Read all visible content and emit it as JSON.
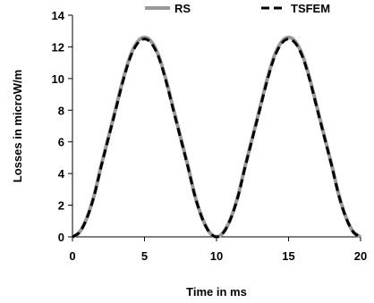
{
  "chart_data": {
    "type": "line",
    "xlabel": "Time in ms",
    "ylabel": "Losses in microW/m",
    "xlim": [
      0,
      20
    ],
    "ylim": [
      0,
      14
    ],
    "xticks": [
      "0",
      "5",
      "10",
      "15",
      "20"
    ],
    "yticks": [
      "0",
      "2",
      "4",
      "6",
      "8",
      "10",
      "12",
      "14"
    ],
    "grid": false,
    "legend_position": "top",
    "series": [
      {
        "name": "RS",
        "color": "#999999",
        "style": "solid",
        "x": [
          0,
          0.5,
          1,
          1.5,
          2,
          2.5,
          3,
          3.5,
          4,
          4.5,
          5,
          5.5,
          6,
          6.5,
          7,
          7.5,
          8,
          8.5,
          9,
          9.5,
          10,
          10.5,
          11,
          11.5,
          12,
          12.5,
          13,
          13.5,
          14,
          14.5,
          15,
          15.5,
          16,
          16.5,
          17,
          17.5,
          18,
          18.5,
          19,
          19.5,
          20
        ],
        "y": [
          0,
          0.31,
          1.2,
          2.61,
          4.52,
          6.3,
          8.1,
          9.9,
          11.4,
          12.3,
          12.6,
          12.3,
          11.4,
          9.9,
          8.1,
          6.3,
          4.52,
          2.61,
          1.2,
          0.31,
          0,
          0.31,
          1.2,
          2.61,
          4.52,
          6.3,
          8.1,
          9.9,
          11.4,
          12.3,
          12.6,
          12.3,
          11.4,
          9.9,
          8.1,
          6.3,
          4.52,
          2.61,
          1.2,
          0.31,
          0
        ]
      },
      {
        "name": "TSFEM",
        "color": "#000000",
        "style": "dashed",
        "x": [
          0,
          0.5,
          1,
          1.5,
          2,
          2.5,
          3,
          3.5,
          4,
          4.5,
          5,
          5.5,
          6,
          6.5,
          7,
          7.5,
          8,
          8.5,
          9,
          9.5,
          10,
          10.5,
          11,
          11.5,
          12,
          12.5,
          13,
          13.5,
          14,
          14.5,
          15,
          15.5,
          16,
          16.5,
          17,
          17.5,
          18,
          18.5,
          19,
          19.5,
          20
        ],
        "y": [
          0,
          0.3,
          1.18,
          2.58,
          4.47,
          6.25,
          8.02,
          9.81,
          11.3,
          12.2,
          12.5,
          12.2,
          11.3,
          9.81,
          8.02,
          6.25,
          4.47,
          2.58,
          1.18,
          0.3,
          0,
          0.3,
          1.18,
          2.58,
          4.47,
          6.25,
          8.02,
          9.81,
          11.3,
          12.2,
          12.5,
          12.2,
          11.3,
          9.81,
          8.02,
          6.25,
          4.47,
          2.58,
          1.18,
          0.3,
          0
        ]
      }
    ]
  }
}
